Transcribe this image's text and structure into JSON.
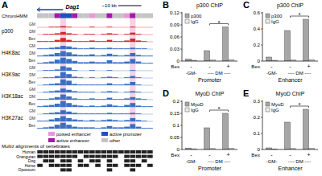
{
  "panel_a": {
    "panel": "A",
    "gene": "Dag1",
    "scale": "~10 kb",
    "chromhmm_label": "ChromHMM",
    "conditions": [
      "GM",
      "DM",
      "Bex"
    ],
    "ylim": [
      0,
      10
    ],
    "highlight_bins": [
      4,
      16
    ],
    "legend": [
      {
        "name": "poised enhancer",
        "color": "#e59ad6"
      },
      {
        "name": "active promoter",
        "color": "#2050c0"
      },
      {
        "name": "active enhancer",
        "color": "#a01ca8"
      },
      {
        "name": "other",
        "color": "#c4c4c4"
      }
    ],
    "chromhmm": [
      3,
      3,
      3,
      2,
      1,
      1,
      2,
      3,
      3,
      0,
      3,
      3,
      2,
      3,
      3,
      0,
      2,
      3,
      3,
      3
    ],
    "tracks": [
      {
        "name": "p300",
        "color": "#d62828",
        "signals": [
          [
            0,
            0,
            1,
            1,
            2,
            1,
            0,
            0,
            0,
            1,
            0,
            0,
            1,
            0,
            0,
            0,
            1,
            0,
            0,
            0
          ],
          [
            0,
            1,
            1,
            2,
            4,
            2,
            1,
            0,
            1,
            1,
            0,
            1,
            2,
            1,
            0,
            1,
            3,
            1,
            0,
            0
          ],
          [
            1,
            1,
            1,
            3,
            6,
            3,
            1,
            1,
            1,
            2,
            1,
            1,
            3,
            1,
            1,
            2,
            5,
            2,
            1,
            0
          ]
        ]
      },
      {
        "name": "H4K8ac",
        "color": "#3a6fc4",
        "signals": [
          [
            1,
            1,
            2,
            3,
            5,
            4,
            2,
            1,
            1,
            2,
            1,
            1,
            2,
            1,
            1,
            1,
            2,
            1,
            1,
            0
          ],
          [
            1,
            2,
            3,
            5,
            8,
            6,
            3,
            2,
            2,
            3,
            1,
            2,
            4,
            2,
            1,
            2,
            5,
            2,
            1,
            1
          ],
          [
            1,
            2,
            3,
            6,
            9,
            7,
            4,
            2,
            2,
            3,
            2,
            2,
            5,
            2,
            2,
            3,
            7,
            3,
            1,
            1
          ]
        ]
      },
      {
        "name": "H3K9ac",
        "color": "#3a6fc4",
        "signals": [
          [
            0,
            1,
            1,
            2,
            7,
            5,
            1,
            0,
            0,
            1,
            0,
            0,
            1,
            0,
            0,
            0,
            1,
            0,
            0,
            0
          ],
          [
            0,
            1,
            1,
            3,
            9,
            6,
            2,
            1,
            0,
            1,
            0,
            1,
            2,
            1,
            0,
            1,
            3,
            1,
            0,
            0
          ],
          [
            0,
            1,
            2,
            3,
            9,
            7,
            2,
            1,
            1,
            1,
            1,
            1,
            3,
            1,
            1,
            2,
            5,
            1,
            0,
            0
          ]
        ]
      },
      {
        "name": "H3K18ac",
        "color": "#3a6fc4",
        "signals": [
          [
            0,
            1,
            2,
            3,
            6,
            4,
            2,
            1,
            1,
            1,
            0,
            1,
            2,
            1,
            0,
            1,
            2,
            1,
            0,
            0
          ],
          [
            1,
            1,
            2,
            4,
            8,
            5,
            2,
            1,
            1,
            2,
            1,
            1,
            3,
            1,
            1,
            2,
            4,
            2,
            1,
            0
          ],
          [
            1,
            2,
            3,
            5,
            9,
            6,
            3,
            2,
            1,
            2,
            1,
            2,
            4,
            2,
            1,
            3,
            6,
            2,
            1,
            1
          ]
        ]
      },
      {
        "name": "H3K27ac",
        "color": "#3a6fc4",
        "signals": [
          [
            0,
            1,
            2,
            3,
            6,
            4,
            2,
            1,
            1,
            1,
            1,
            1,
            2,
            1,
            1,
            1,
            2,
            1,
            0,
            0
          ],
          [
            1,
            1,
            3,
            5,
            8,
            5,
            3,
            2,
            1,
            2,
            1,
            2,
            3,
            2,
            1,
            2,
            5,
            2,
            1,
            0
          ],
          [
            1,
            2,
            3,
            6,
            9,
            6,
            3,
            2,
            2,
            2,
            1,
            2,
            4,
            2,
            2,
            3,
            7,
            3,
            1,
            1
          ]
        ]
      }
    ],
    "alignment_label": "Multiz alignments of vertebrates",
    "species": [
      {
        "name": "Human",
        "values": [
          1,
          1,
          1,
          1,
          1,
          1,
          1,
          1,
          1,
          1,
          1,
          1,
          1,
          1,
          1,
          1,
          1,
          1,
          1,
          1
        ]
      },
      {
        "name": "Orangutan",
        "values": [
          1,
          1,
          1,
          1,
          1,
          1,
          1,
          0,
          1,
          1,
          1,
          1,
          1,
          1,
          0,
          1,
          1,
          1,
          1,
          1
        ]
      },
      {
        "name": "Dog",
        "values": [
          0,
          1,
          1,
          0,
          1,
          1,
          0,
          1,
          0,
          1,
          1,
          0,
          1,
          0,
          0,
          1,
          1,
          0,
          1,
          0
        ]
      },
      {
        "name": "Horse",
        "values": [
          1,
          0,
          1,
          1,
          1,
          1,
          0,
          1,
          1,
          0,
          1,
          0,
          1,
          1,
          0,
          1,
          1,
          1,
          0,
          1
        ]
      },
      {
        "name": "Opossum",
        "values": [
          0,
          0,
          0,
          0,
          1,
          1,
          0,
          0,
          0,
          0,
          0,
          0,
          1,
          0,
          0,
          0,
          1,
          0,
          0,
          0
        ]
      }
    ]
  },
  "chart_data": [
    {
      "panel": "B",
      "type": "bar",
      "title": "p300 ChIP",
      "xlabel": "Promoter",
      "row_label": "Bex",
      "categories": [
        "-",
        "-",
        "+"
      ],
      "group_labels": [
        "-GM-",
        "---- DM ----"
      ],
      "annotation": "*",
      "series": [
        {
          "name": "p300",
          "color": "#a6a6a6",
          "values": [
            0.005,
            0.026,
            0.085
          ]
        },
        {
          "name": "IgG",
          "color": "#ededed",
          "values": [
            0.002,
            0.003,
            0.004
          ]
        }
      ],
      "ylim": [
        0,
        0.12
      ],
      "yticks": [
        0,
        0.03,
        0.06,
        0.09,
        0.12
      ],
      "grid": false,
      "legend": "upper left"
    },
    {
      "panel": "C",
      "type": "bar",
      "title": "p300 ChIP",
      "xlabel": "Enhancer",
      "row_label": "Bex",
      "categories": [
        "-",
        "-",
        "+"
      ],
      "group_labels": [
        "-GM-",
        "---- DM ----"
      ],
      "annotation": "*",
      "series": [
        {
          "name": "p300",
          "color": "#a6a6a6",
          "values": [
            0.05,
            0.38,
            0.52
          ]
        },
        {
          "name": "IgG",
          "color": "#ededed",
          "values": [
            0.01,
            0.015,
            0.02
          ]
        }
      ],
      "ylim": [
        0,
        0.6
      ],
      "yticks": [
        0,
        0.2,
        0.4,
        0.6
      ],
      "grid": false,
      "legend": "upper left"
    },
    {
      "panel": "D",
      "type": "bar",
      "title": "MyoD ChIP",
      "xlabel": "Promoter",
      "row_label": "Bex",
      "categories": [
        "-",
        "-",
        "+"
      ],
      "group_labels": [
        "-GM-",
        "---- DM ----"
      ],
      "annotation": "*",
      "series": [
        {
          "name": "MyoD",
          "color": "#a6a6a6",
          "values": [
            0.006,
            0.09,
            0.15
          ]
        },
        {
          "name": "IgG",
          "color": "#ededed",
          "values": [
            0.003,
            0.004,
            0.005
          ]
        }
      ],
      "ylim": [
        0,
        0.2
      ],
      "yticks": [
        0,
        0.05,
        0.1,
        0.15,
        0.2
      ],
      "grid": false,
      "legend": "upper left"
    },
    {
      "panel": "E",
      "type": "bar",
      "title": "MyoD ChIP",
      "xlabel": "Enhancer",
      "row_label": "Bex",
      "categories": [
        "-",
        "-",
        "+"
      ],
      "group_labels": [
        "-GM-",
        "---- DM ----"
      ],
      "annotation": "*",
      "series": [
        {
          "name": "MyoD",
          "color": "#a6a6a6",
          "values": [
            0.01,
            0.17,
            0.25
          ]
        },
        {
          "name": "IgG",
          "color": "#ededed",
          "values": [
            0.004,
            0.006,
            0.008
          ]
        }
      ],
      "ylim": [
        0,
        0.3
      ],
      "yticks": [
        0,
        0.1,
        0.2,
        0.3
      ],
      "grid": false,
      "legend": "upper left"
    }
  ]
}
